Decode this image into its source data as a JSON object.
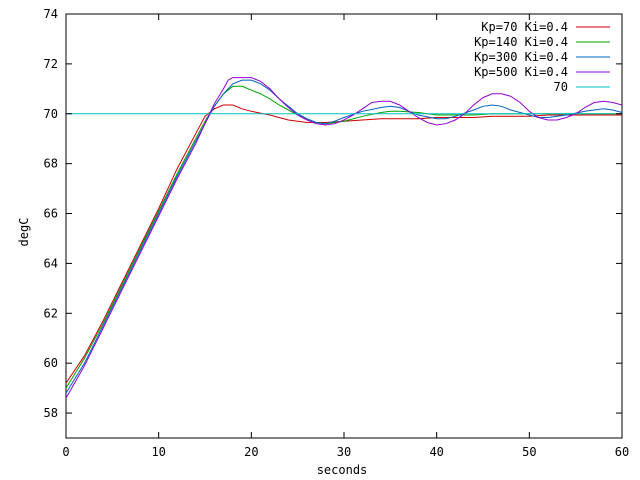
{
  "chart_data": {
    "type": "line",
    "title": "",
    "xlabel": "seconds",
    "ylabel": "degC",
    "xlim": [
      0,
      60
    ],
    "ylim": [
      57,
      74
    ],
    "xticks": [
      0,
      10,
      20,
      30,
      40,
      50,
      60
    ],
    "yticks": [
      58,
      60,
      62,
      64,
      66,
      68,
      70,
      72,
      74
    ],
    "grid": false,
    "legend_position": "top-right",
    "series": [
      {
        "name": "Kp=70 Ki=0.4",
        "color": "#cc0000",
        "points": [
          [
            0,
            59.2
          ],
          [
            2,
            60.3
          ],
          [
            4,
            61.7
          ],
          [
            6,
            63.2
          ],
          [
            8,
            64.7
          ],
          [
            10,
            66.2
          ],
          [
            12,
            67.8
          ],
          [
            14,
            69.2
          ],
          [
            15,
            69.9
          ],
          [
            16,
            70.2
          ],
          [
            17,
            70.35
          ],
          [
            18,
            70.35
          ],
          [
            19,
            70.2
          ],
          [
            20,
            70.1
          ],
          [
            22,
            69.95
          ],
          [
            24,
            69.75
          ],
          [
            26,
            69.65
          ],
          [
            28,
            69.65
          ],
          [
            30,
            69.7
          ],
          [
            32,
            69.75
          ],
          [
            34,
            69.8
          ],
          [
            36,
            69.8
          ],
          [
            38,
            69.8
          ],
          [
            40,
            69.85
          ],
          [
            42,
            69.85
          ],
          [
            44,
            69.85
          ],
          [
            46,
            69.9
          ],
          [
            48,
            69.9
          ],
          [
            50,
            69.9
          ],
          [
            52,
            69.95
          ],
          [
            54,
            69.95
          ],
          [
            56,
            69.95
          ],
          [
            58,
            69.95
          ],
          [
            60,
            69.95
          ]
        ]
      },
      {
        "name": "Kp=140 Ki=0.4",
        "color": "#00a000",
        "points": [
          [
            0,
            59.0
          ],
          [
            2,
            60.2
          ],
          [
            4,
            61.6
          ],
          [
            6,
            63.1
          ],
          [
            8,
            64.6
          ],
          [
            10,
            66.1
          ],
          [
            12,
            67.6
          ],
          [
            14,
            69.0
          ],
          [
            15,
            69.7
          ],
          [
            16,
            70.3
          ],
          [
            17,
            70.8
          ],
          [
            18,
            71.1
          ],
          [
            19,
            71.1
          ],
          [
            20,
            70.95
          ],
          [
            21,
            70.8
          ],
          [
            22,
            70.6
          ],
          [
            23,
            70.35
          ],
          [
            24,
            70.15
          ],
          [
            25,
            69.95
          ],
          [
            26,
            69.8
          ],
          [
            27,
            69.65
          ],
          [
            28,
            69.6
          ],
          [
            30,
            69.7
          ],
          [
            32,
            69.9
          ],
          [
            34,
            70.05
          ],
          [
            35,
            70.1
          ],
          [
            36,
            70.1
          ],
          [
            38,
            70.05
          ],
          [
            40,
            69.95
          ],
          [
            42,
            69.95
          ],
          [
            44,
            69.95
          ],
          [
            46,
            70.0
          ],
          [
            48,
            70.0
          ],
          [
            50,
            70.0
          ],
          [
            52,
            70.0
          ],
          [
            54,
            70.0
          ],
          [
            56,
            70.0
          ],
          [
            58,
            70.0
          ],
          [
            60,
            70.0
          ]
        ]
      },
      {
        "name": "Kp=300 Ki=0.4",
        "color": "#0060c0",
        "points": [
          [
            0,
            58.8
          ],
          [
            2,
            60.0
          ],
          [
            4,
            61.5
          ],
          [
            6,
            63.0
          ],
          [
            8,
            64.5
          ],
          [
            10,
            66.0
          ],
          [
            12,
            67.5
          ],
          [
            14,
            68.9
          ],
          [
            15,
            69.6
          ],
          [
            16,
            70.3
          ],
          [
            17,
            70.8
          ],
          [
            18,
            71.2
          ],
          [
            19,
            71.35
          ],
          [
            20,
            71.35
          ],
          [
            21,
            71.2
          ],
          [
            22,
            70.95
          ],
          [
            23,
            70.6
          ],
          [
            24,
            70.3
          ],
          [
            25,
            70.0
          ],
          [
            26,
            69.8
          ],
          [
            27,
            69.65
          ],
          [
            28,
            69.6
          ],
          [
            29,
            69.7
          ],
          [
            30,
            69.85
          ],
          [
            32,
            70.1
          ],
          [
            34,
            70.25
          ],
          [
            35,
            70.3
          ],
          [
            36,
            70.25
          ],
          [
            37,
            70.1
          ],
          [
            38,
            69.95
          ],
          [
            40,
            69.8
          ],
          [
            41,
            69.8
          ],
          [
            42,
            69.9
          ],
          [
            44,
            70.15
          ],
          [
            45,
            70.3
          ],
          [
            46,
            70.35
          ],
          [
            47,
            70.3
          ],
          [
            48,
            70.15
          ],
          [
            50,
            69.95
          ],
          [
            51,
            69.85
          ],
          [
            52,
            69.85
          ],
          [
            54,
            69.95
          ],
          [
            56,
            70.1
          ],
          [
            58,
            70.2
          ],
          [
            59,
            70.15
          ],
          [
            60,
            70.05
          ]
        ]
      },
      {
        "name": "Kp=500 Ki=0.4",
        "color": "#9400d3",
        "points": [
          [
            0,
            58.6
          ],
          [
            2,
            59.9
          ],
          [
            4,
            61.4
          ],
          [
            6,
            62.9
          ],
          [
            8,
            64.4
          ],
          [
            10,
            65.9
          ],
          [
            12,
            67.4
          ],
          [
            14,
            68.8
          ],
          [
            15,
            69.6
          ],
          [
            16,
            70.4
          ],
          [
            17,
            71.0
          ],
          [
            17.5,
            71.35
          ],
          [
            18,
            71.45
          ],
          [
            19,
            71.45
          ],
          [
            20,
            71.45
          ],
          [
            21,
            71.3
          ],
          [
            22,
            71.0
          ],
          [
            23,
            70.6
          ],
          [
            24,
            70.25
          ],
          [
            25,
            69.95
          ],
          [
            26,
            69.75
          ],
          [
            27,
            69.6
          ],
          [
            28,
            69.55
          ],
          [
            29,
            69.6
          ],
          [
            30,
            69.75
          ],
          [
            31,
            69.95
          ],
          [
            32,
            70.2
          ],
          [
            33,
            70.45
          ],
          [
            34,
            70.5
          ],
          [
            35,
            70.5
          ],
          [
            36,
            70.35
          ],
          [
            37,
            70.1
          ],
          [
            38,
            69.85
          ],
          [
            39,
            69.65
          ],
          [
            40,
            69.55
          ],
          [
            41,
            69.6
          ],
          [
            42,
            69.75
          ],
          [
            43,
            70.0
          ],
          [
            44,
            70.35
          ],
          [
            45,
            70.65
          ],
          [
            46,
            70.8
          ],
          [
            47,
            70.8
          ],
          [
            48,
            70.7
          ],
          [
            49,
            70.45
          ],
          [
            50,
            70.1
          ],
          [
            51,
            69.85
          ],
          [
            52,
            69.75
          ],
          [
            53,
            69.75
          ],
          [
            54,
            69.85
          ],
          [
            55,
            70.0
          ],
          [
            56,
            70.25
          ],
          [
            57,
            70.45
          ],
          [
            58,
            70.5
          ],
          [
            59,
            70.45
          ],
          [
            60,
            70.35
          ]
        ]
      },
      {
        "name": "70",
        "color": "#00c0c0",
        "points": [
          [
            0,
            70
          ],
          [
            60,
            70
          ]
        ]
      }
    ]
  }
}
